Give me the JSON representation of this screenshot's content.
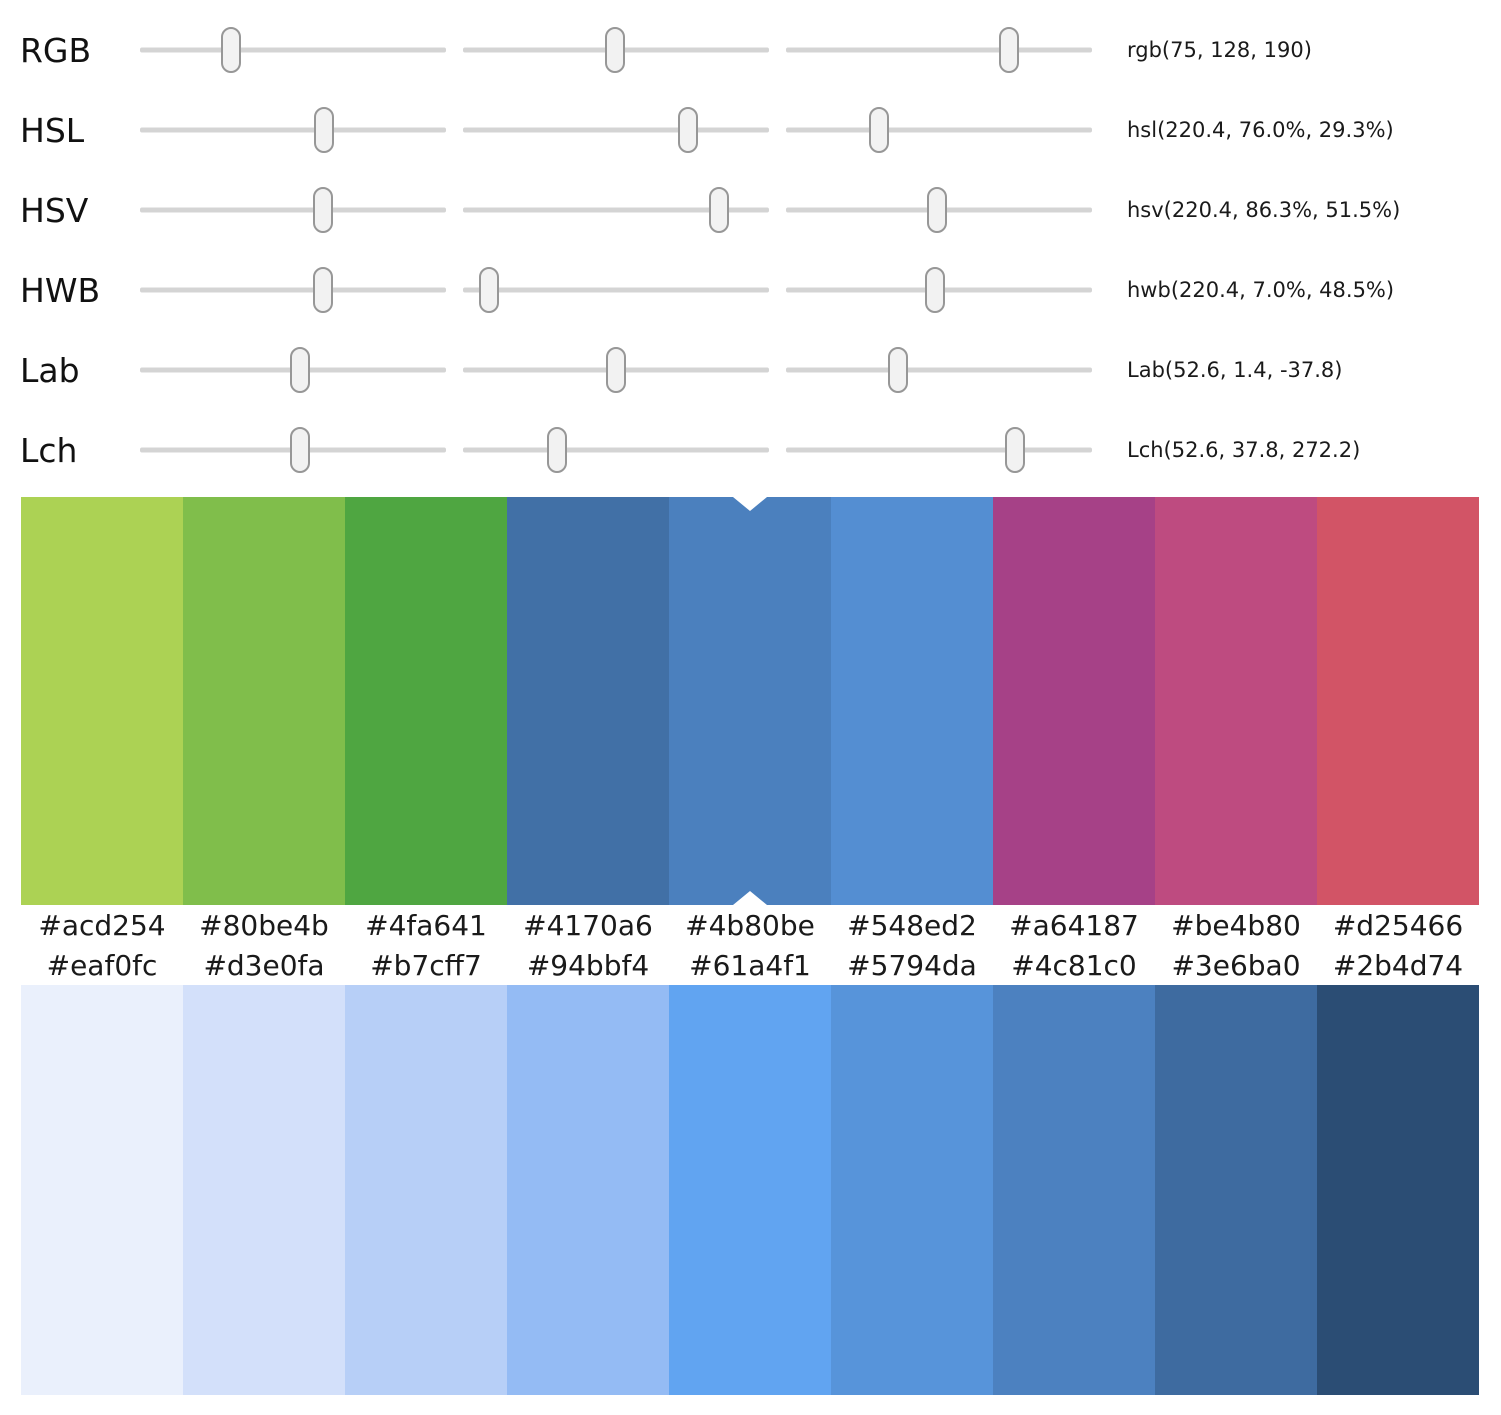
{
  "sliders": {
    "rows": [
      {
        "label": "RGB",
        "value": "rgb(75, 128, 190)",
        "thumb_percents": [
          29.6,
          49.8,
          73.0
        ]
      },
      {
        "label": "HSL",
        "value": "hsl(220.4, 76.0%, 29.3%)",
        "thumb_percents": [
          60.0,
          73.5,
          30.4
        ]
      },
      {
        "label": "HSV",
        "value": "hsv(220.4, 86.3%, 51.5%)",
        "thumb_percents": [
          59.8,
          83.7,
          49.5
        ]
      },
      {
        "label": "HWB",
        "value": "hwb(220.4, 7.0%, 48.5%)",
        "thumb_percents": [
          59.8,
          8.6,
          48.7
        ]
      },
      {
        "label": "Lab",
        "value": "Lab(52.6, 1.4, -37.8)",
        "thumb_percents": [
          52.3,
          50.0,
          36.6
        ]
      },
      {
        "label": "Lch",
        "value": "Lch(52.6, 37.8, 272.2)",
        "thumb_percents": [
          52.3,
          30.7,
          74.8
        ]
      }
    ]
  },
  "scale_top": {
    "swatches": [
      "#acd254",
      "#80be4b",
      "#4fa641",
      "#4170a6",
      "#4b80be",
      "#548ed2",
      "#a64187",
      "#be4b80",
      "#d25466"
    ],
    "selected_index": 4,
    "marker_color": "#ffffff"
  },
  "scale_bottom": {
    "swatches": [
      "#eaf0fc",
      "#d3e0fa",
      "#b7cff7",
      "#94bbf4",
      "#61a4f1",
      "#5794da",
      "#4c81c0",
      "#3e6ba0",
      "#2b4d74"
    ]
  },
  "current_color": "#4b80be",
  "ui_colors": {
    "track": "#d4d4d4",
    "thumb_fill": "#f2f2f2",
    "thumb_border": "#979797",
    "text": "#1a1a1a"
  }
}
